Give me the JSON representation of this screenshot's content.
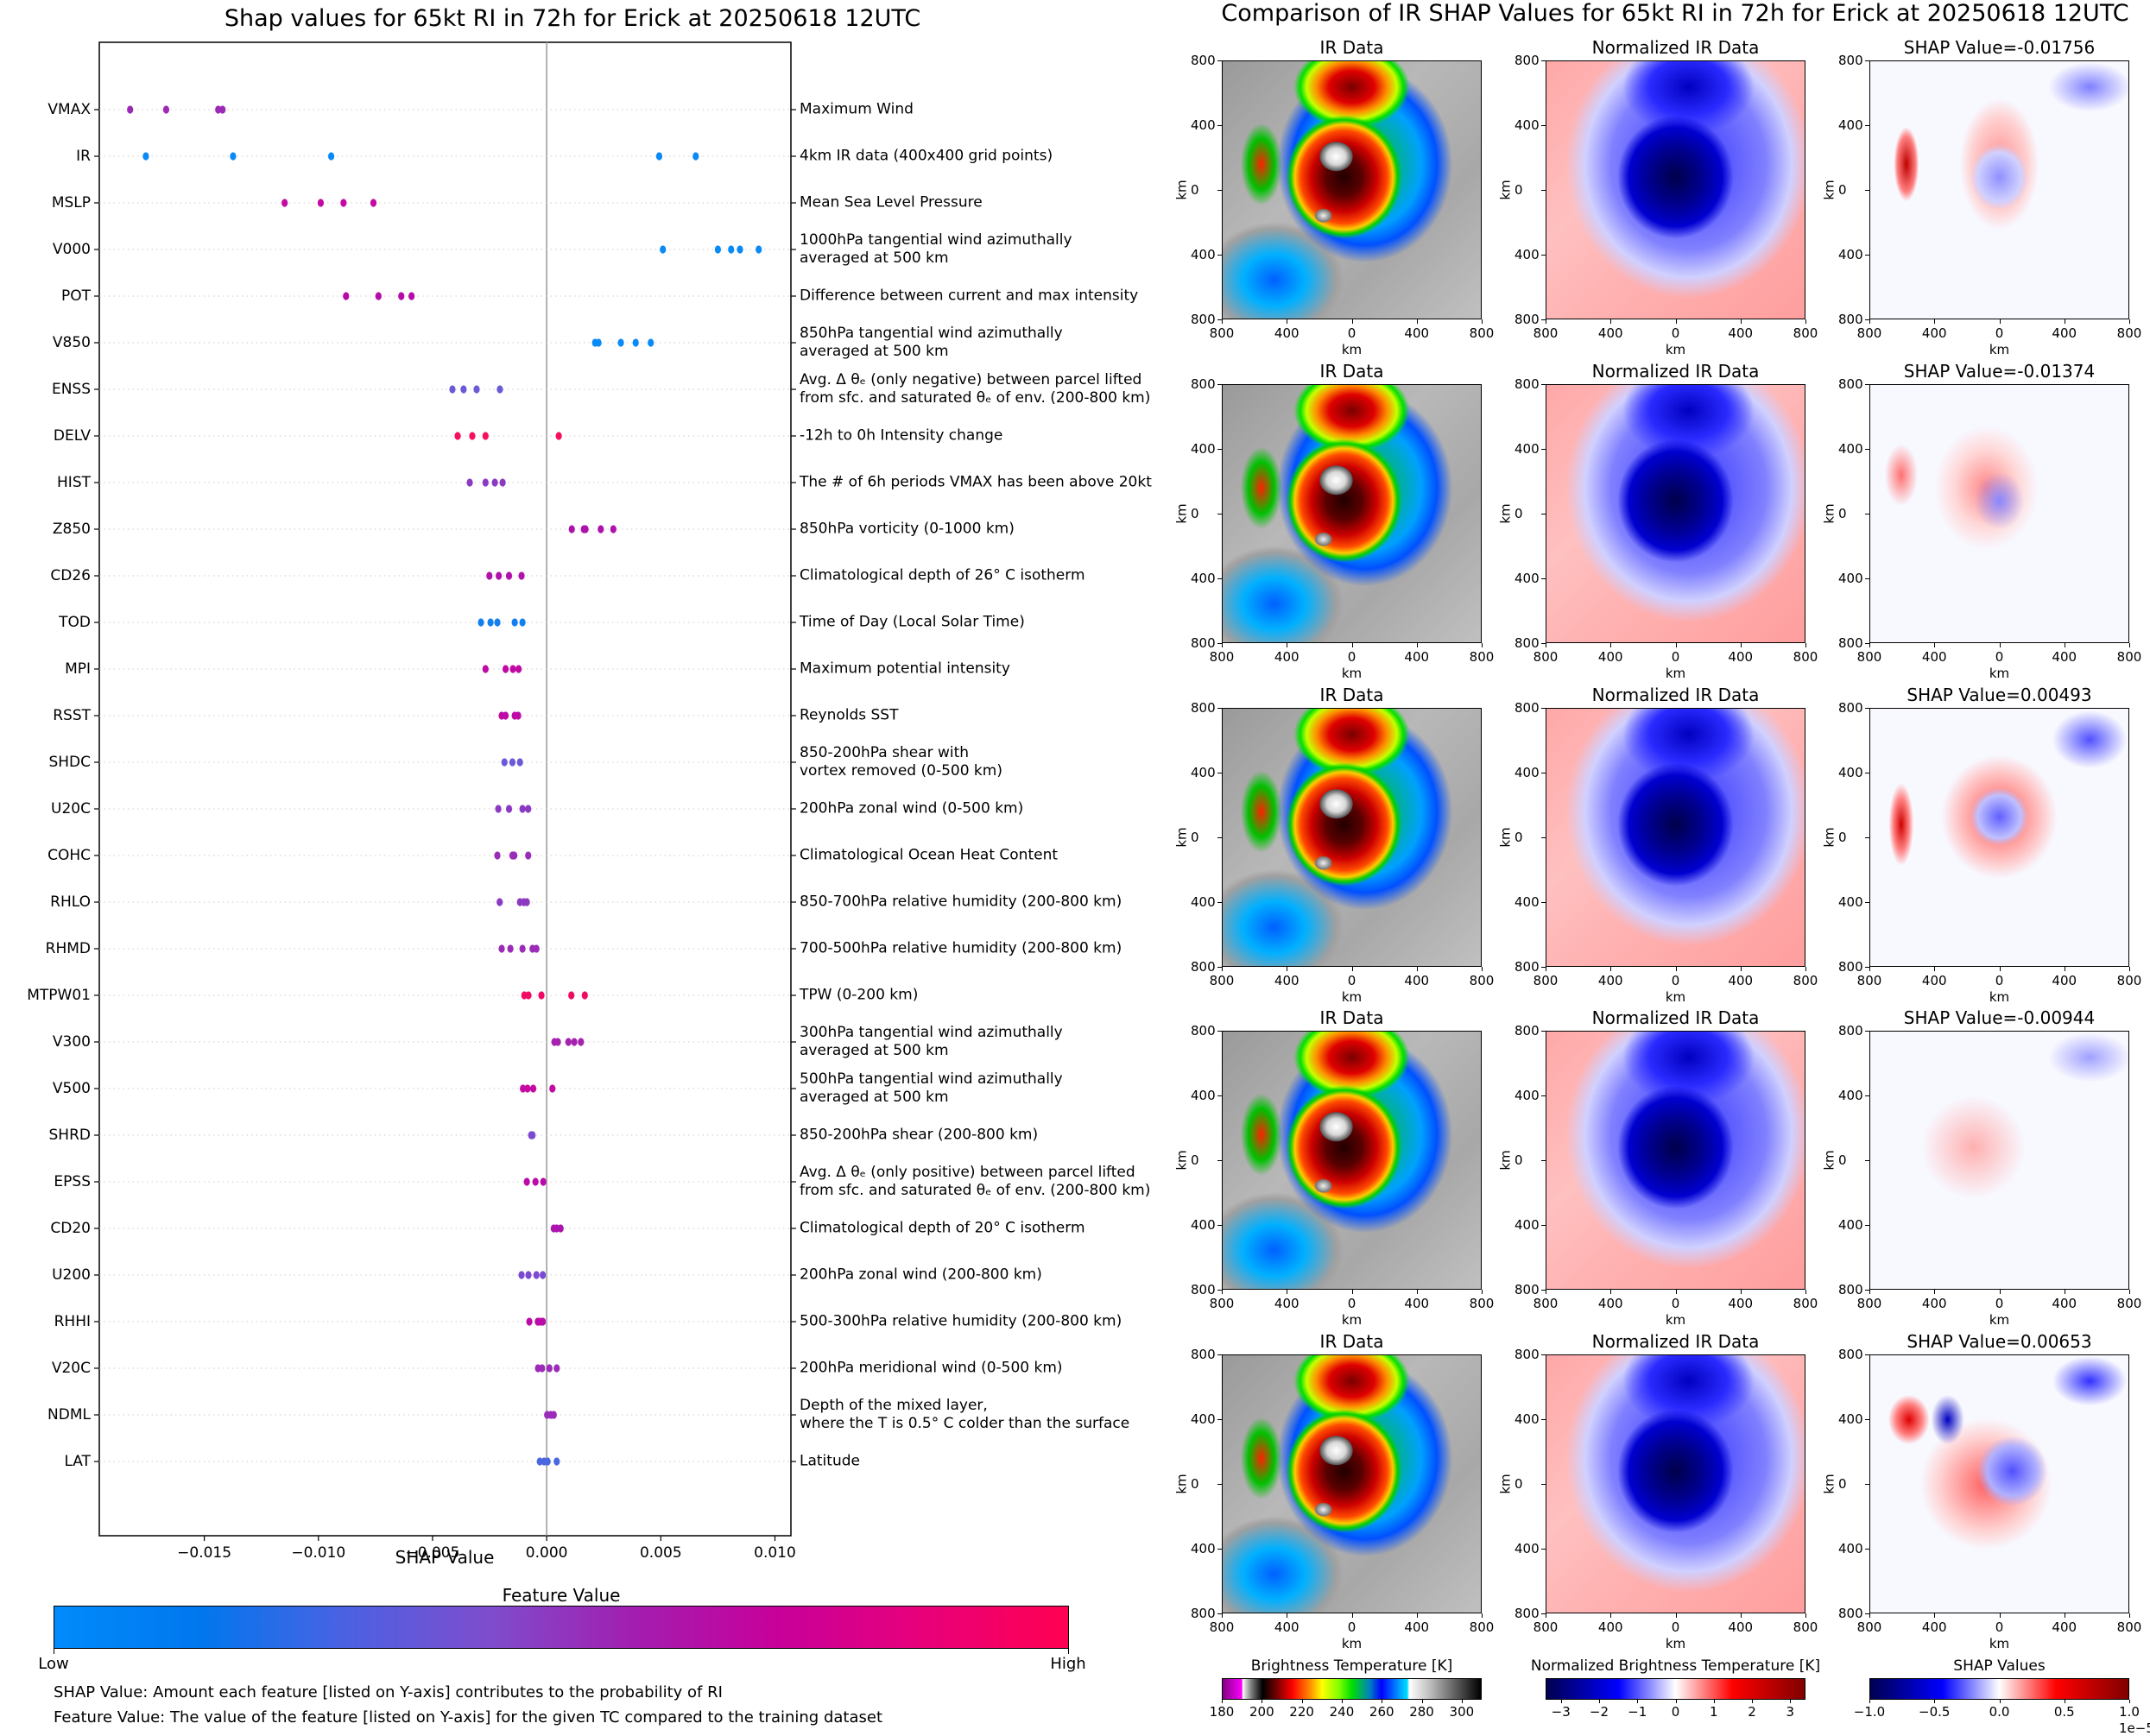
{
  "chart_data": [
    {
      "type": "scatter",
      "title": "Shap values for 65kt RI in 72h for Erick at 20250618 12UTC",
      "xlabel": "SHAP Value",
      "ylabel": "",
      "xlim": [
        -0.0196,
        0.0107
      ],
      "xticks": [
        "−0.015",
        "−0.010",
        "−0.005",
        "0.000",
        "0.005",
        "0.010"
      ],
      "xtick_values": [
        -0.015,
        -0.01,
        -0.005,
        0.0,
        0.005,
        0.01
      ],
      "grid": "horizontal dotted",
      "zero_line": true,
      "features": [
        {
          "name": "VMAX",
          "desc": "Maximum Wind",
          "color": "#9b2bb5",
          "values": [
            -0.01825,
            -0.01667,
            -0.01439,
            -0.0142
          ]
        },
        {
          "name": "IR",
          "desc": "4km IR data (400x400 grid points)",
          "color": "#0a8af5",
          "values": [
            -0.01756,
            -0.01374,
            -0.00944,
            0.00493,
            0.00653
          ]
        },
        {
          "name": "MSLP",
          "desc": "Mean Sea Level Pressure",
          "color": "#c40aa2",
          "values": [
            -0.01148,
            -0.0099,
            -0.0089,
            -0.00759
          ]
        },
        {
          "name": "V000",
          "desc": "1000hPa tangential wind azimuthally\naveraged at 500 km",
          "color": "#0a8af5",
          "values": [
            0.00509,
            0.0075,
            0.00808,
            0.00847,
            0.00929
          ]
        },
        {
          "name": "POT",
          "desc": "Difference between current and max intensity",
          "color": "#b70aa8",
          "values": [
            -0.00879,
            -0.00737,
            -0.00637,
            -0.00592
          ]
        },
        {
          "name": "V850",
          "desc": "850hPa tangential wind azimuthally\naveraged at 500 km",
          "color": "#0a8af5",
          "values": [
            0.00212,
            0.00227,
            0.00325,
            0.0039,
            0.00456
          ]
        },
        {
          "name": "ENSS",
          "desc": "Avg. Δ θₑ (only negative) between parcel lifted\nfrom sfc. and saturated θₑ of env. (200-800 km)",
          "color": "#6a5ad8",
          "values": [
            -0.00413,
            -0.00364,
            -0.00307,
            -0.00205
          ]
        },
        {
          "name": "DELV",
          "desc": "-12h to 0h Intensity change",
          "color": "#f5105f",
          "values": [
            -0.0039,
            -0.00326,
            -0.00268,
            0.00053
          ]
        },
        {
          "name": "HIST",
          "desc": "The # of 6h periods VMAX has been above 20kt",
          "color": "#8b3ac2",
          "values": [
            -0.00337,
            -0.00268,
            -0.00227,
            -0.00193
          ]
        },
        {
          "name": "Z850",
          "desc": "850hPa vorticity (0-1000 km)",
          "color": "#ae12ac",
          "values": [
            0.0011,
            0.00163,
            0.0017,
            0.00237,
            0.00292
          ]
        },
        {
          "name": "CD26",
          "desc": "Climatological depth of 26° C isotherm",
          "color": "#b211ab",
          "values": [
            -0.00251,
            -0.0021,
            -0.00165,
            -0.0011
          ]
        },
        {
          "name": "TOD",
          "desc": "Time of Day (Local Solar Time)",
          "color": "#1480ee",
          "values": [
            -0.00288,
            -0.00246,
            -0.00216,
            -0.0014,
            -0.00106
          ]
        },
        {
          "name": "MPI",
          "desc": "Maximum potential intensity",
          "color": "#c00aa4",
          "values": [
            -0.00268,
            -0.0018,
            -0.00148,
            -0.00123
          ]
        },
        {
          "name": "RSST",
          "desc": "Reynolds SST",
          "color": "#be0aa6",
          "values": [
            -0.00197,
            -0.0018,
            -0.0014,
            -0.00125
          ]
        },
        {
          "name": "SHDC",
          "desc": "850-200hPa shear with\nvortex removed (0-500 km)",
          "color": "#6a5ad8",
          "values": [
            -0.00185,
            -0.0015,
            -0.00117
          ]
        },
        {
          "name": "U20C",
          "desc": "200hPa zonal wind (0-500 km)",
          "color": "#8b3ac2",
          "values": [
            -0.00212,
            -0.00165,
            -0.00106,
            -0.00081
          ]
        },
        {
          "name": "COHC",
          "desc": "Climatological Ocean Heat Content",
          "color": "#9a2cb8",
          "values": [
            -0.00216,
            -0.0015,
            -0.00142,
            -0.00081
          ]
        },
        {
          "name": "RHLO",
          "desc": "850-700hPa relative humidity (200-800 km)",
          "color": "#8b3ac2",
          "values": [
            -0.00206,
            -0.00117,
            -0.001,
            -0.00087
          ]
        },
        {
          "name": "RHMD",
          "desc": "700-500hPa relative humidity (200-800 km)",
          "color": "#9a2cb8",
          "values": [
            -0.00197,
            -0.00159,
            -0.00106,
            -0.00062,
            -0.00045
          ]
        },
        {
          "name": "MTPW01",
          "desc": "TPW (0-200 km)",
          "color": "#f00a63",
          "values": [
            -0.00098,
            -0.0008,
            -0.00023,
            0.00108,
            0.00167
          ]
        },
        {
          "name": "V300",
          "desc": "300hPa tangential wind azimuthally\naveraged at 500 km",
          "color": "#a621b0",
          "values": [
            0.00034,
            0.00049,
            0.00095,
            0.00121,
            0.0015
          ]
        },
        {
          "name": "V500",
          "desc": "500hPa tangential wind azimuthally\naveraged at 500 km",
          "color": "#c40aa0",
          "values": [
            -0.00104,
            -0.00084,
            -0.00059,
            0.00025
          ]
        },
        {
          "name": "SHRD",
          "desc": "850-200hPa shear (200-800 km)",
          "color": "#7b4ad0",
          "values": [
            -0.00068,
            -0.00065,
            -0.00062
          ]
        },
        {
          "name": "EPSS",
          "desc": "Avg. Δ θₑ (only positive) between parcel lifted\nfrom sfc. and saturated θₑ of env. (200-800 km)",
          "color": "#ba0ca8",
          "values": [
            -0.00087,
            -0.00049,
            -0.00015
          ]
        },
        {
          "name": "CD20",
          "desc": "Climatological depth of 20° C isotherm",
          "color": "#ab14ae",
          "values": [
            0.00031,
            0.00044,
            0.00061
          ]
        },
        {
          "name": "U200",
          "desc": "200hPa zonal wind (200-800 km)",
          "color": "#7b4ad0",
          "values": [
            -0.0011,
            -0.0008,
            -0.00045,
            -0.00017
          ]
        },
        {
          "name": "RHHI",
          "desc": "500-300hPa relative humidity (200-800 km)",
          "color": "#ba0ca8",
          "values": [
            -0.00076,
            -0.00039,
            -0.00028,
            -0.00017
          ]
        },
        {
          "name": "V20C",
          "desc": "200hPa meridional wind (0-500 km)",
          "color": "#9a2cb8",
          "values": [
            -0.00038,
            -0.0002,
            0.00012,
            0.00044
          ]
        },
        {
          "name": "NDML",
          "desc": "Depth of the mixed layer,\nwhere the T is 0.5° C colder than the surface",
          "color": "#9a2cb8",
          "values": [
            2e-05,
            0.00018,
            0.00031
          ]
        },
        {
          "name": "LAT",
          "desc": "Latitude",
          "color": "#4a68e0",
          "values": [
            -0.0003,
            -0.00011,
            4e-05,
            0.00044
          ]
        }
      ],
      "colorbar": {
        "title": "Feature Value",
        "low_label": "Low",
        "high_label": "High",
        "colors": [
          "#008bfb",
          "#0077ee",
          "#4a62e2",
          "#7e4dcd",
          "#a21eb0",
          "#c8009a",
          "#e8007a",
          "#ff0052"
        ]
      }
    },
    {
      "type": "heatmap",
      "title": "Comparison of IR SHAP Values for 65kt RI in 72h for Erick at 20250618 12UTC",
      "panel_titles": [
        "IR Data",
        "Normalized IR Data"
      ],
      "shap_values": [
        -0.01756,
        -0.01374,
        0.00493,
        -0.00944,
        0.00653
      ],
      "shap_title_prefix": "SHAP Value=",
      "axis_label": "km",
      "xticks": [
        "800",
        "400",
        "0",
        "400",
        "800"
      ],
      "yticks": [
        "800",
        "400",
        "0",
        "400",
        "800"
      ],
      "xlim": [
        -800,
        800
      ],
      "ylim": [
        -800,
        800
      ],
      "colorbars": [
        {
          "title": "Brightness Temperature [K]",
          "range": [
            180,
            310
          ],
          "ticks": [
            "180",
            "200",
            "220",
            "240",
            "260",
            "280",
            "300"
          ]
        },
        {
          "title": "Normalized Brightness Temperature [K]",
          "range": [
            -3.4,
            3.4
          ],
          "ticks": [
            "−3",
            "−2",
            "−1",
            "0",
            "1",
            "2",
            "3"
          ]
        },
        {
          "title": "SHAP Values",
          "range": [
            -1.0,
            1.0
          ],
          "ticks": [
            "−1.0",
            "−0.5",
            "0.0",
            "0.5",
            "1.0"
          ],
          "offset_label": "1e−5"
        }
      ]
    }
  ],
  "footnotes": [
    "SHAP Value: Amount each feature [listed on Y-axis] contributes to the probability of RI",
    "Feature Value: The value of the feature [listed on Y-axis] for the given TC compared to the training dataset"
  ]
}
